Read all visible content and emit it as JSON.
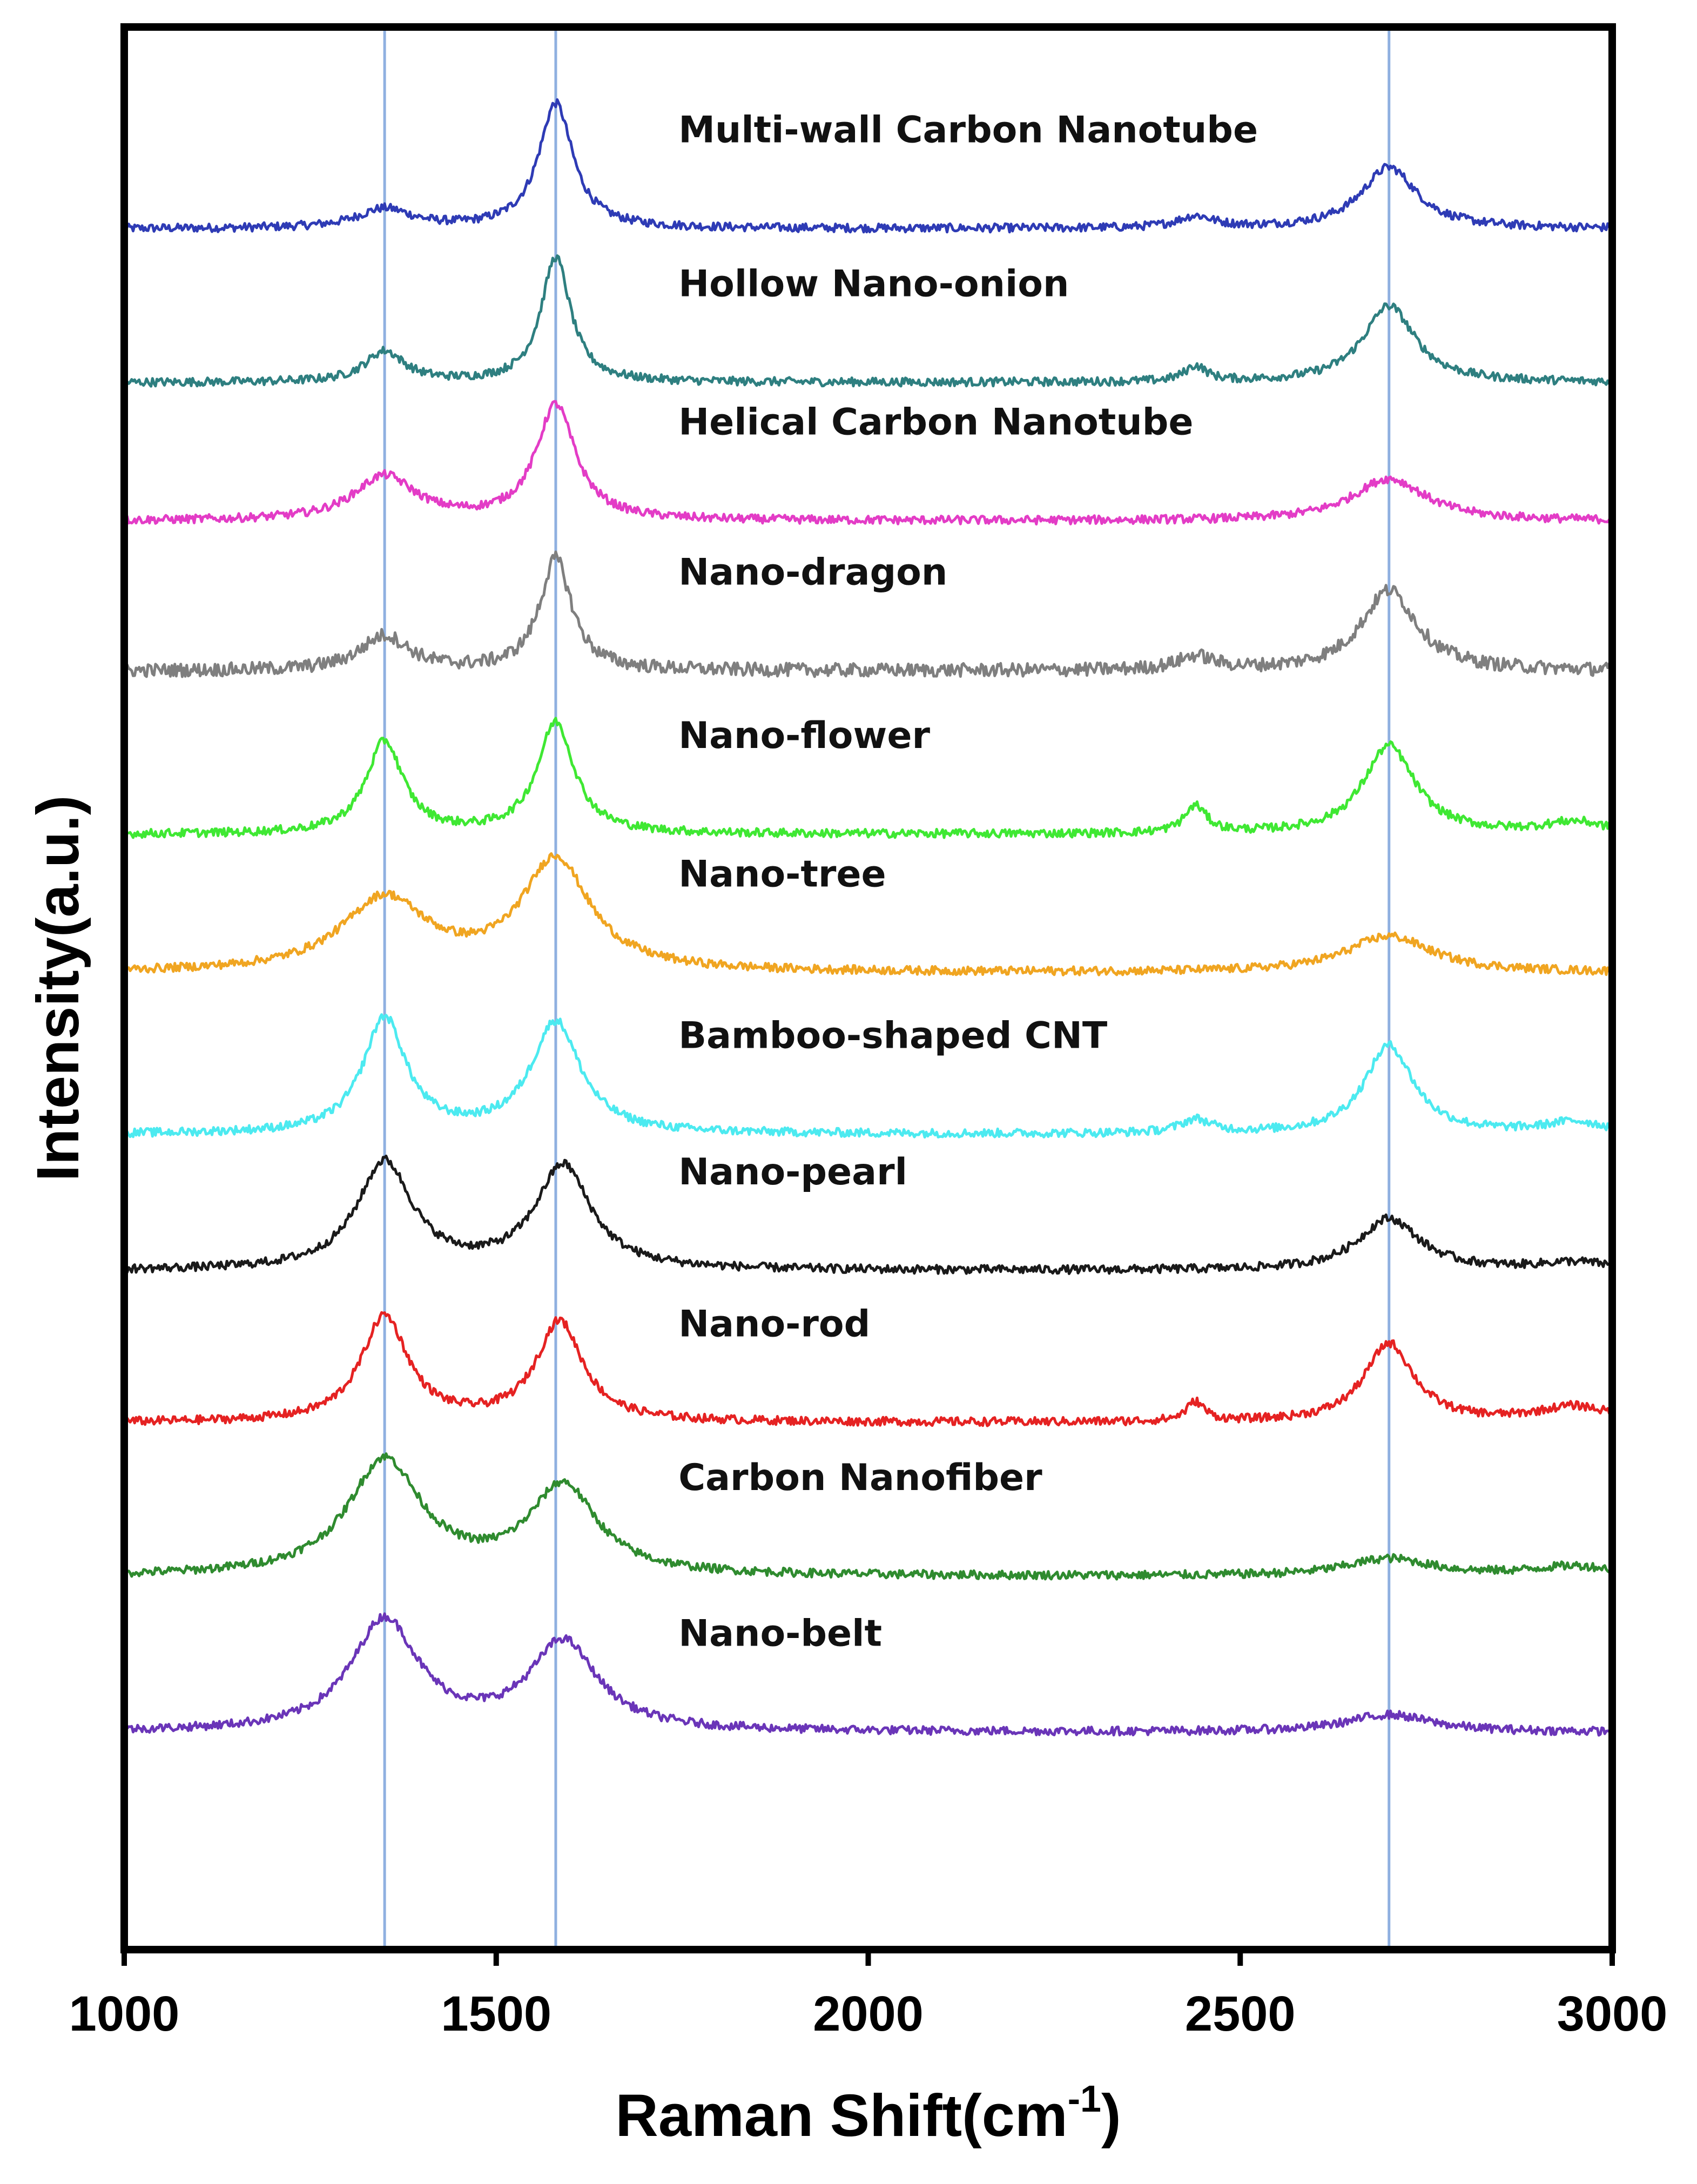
{
  "chart_data": {
    "type": "line",
    "xlabel": "Raman Shift(cm",
    "xlabel_superscript": "-1",
    "xlabel_suffix": ")",
    "ylabel": "Intensity(a.u.)",
    "xlim": [
      1000,
      3000
    ],
    "x_ticks": [
      "1000",
      "1500",
      "2000",
      "2500",
      "3000"
    ],
    "y_ticks": [],
    "grid": false,
    "reference_lines_x": [
      1350,
      1580,
      2700
    ],
    "series": [
      {
        "name": "Multi-wall Carbon Nanotube",
        "color": "#2e3bb5",
        "baseline": 0.895,
        "peaks": [
          {
            "center": 1350,
            "height": 0.01,
            "width": 45
          },
          {
            "center": 1580,
            "height": 0.065,
            "width": 28
          },
          {
            "center": 2440,
            "height": 0.006,
            "width": 30
          },
          {
            "center": 2700,
            "height": 0.032,
            "width": 45
          }
        ]
      },
      {
        "name": "Hollow Nano-onion",
        "color": "#2e7f80",
        "baseline": 0.815,
        "peaks": [
          {
            "center": 1350,
            "height": 0.016,
            "width": 32
          },
          {
            "center": 1580,
            "height": 0.065,
            "width": 24
          },
          {
            "center": 2440,
            "height": 0.008,
            "width": 18
          },
          {
            "center": 2700,
            "height": 0.04,
            "width": 42
          }
        ]
      },
      {
        "name": "Helical Carbon Nanotube",
        "color": "#e33cc6",
        "baseline": 0.743,
        "peaks": [
          {
            "center": 1350,
            "height": 0.023,
            "width": 50
          },
          {
            "center": 1580,
            "height": 0.06,
            "width": 32
          },
          {
            "center": 2700,
            "height": 0.022,
            "width": 60
          }
        ]
      },
      {
        "name": "Nano-dragon",
        "color": "#7f7f7f",
        "baseline": 0.665,
        "peaks": [
          {
            "center": 1350,
            "height": 0.018,
            "width": 40
          },
          {
            "center": 1580,
            "height": 0.058,
            "width": 26
          },
          {
            "center": 2440,
            "height": 0.007,
            "width": 30
          },
          {
            "center": 2700,
            "height": 0.042,
            "width": 45
          }
        ]
      },
      {
        "name": "Nano-flower",
        "color": "#3fe833",
        "baseline": 0.58,
        "peaks": [
          {
            "center": 1350,
            "height": 0.048,
            "width": 30
          },
          {
            "center": 1580,
            "height": 0.058,
            "width": 30
          },
          {
            "center": 2440,
            "height": 0.014,
            "width": 18
          },
          {
            "center": 2700,
            "height": 0.046,
            "width": 42
          },
          {
            "center": 2950,
            "height": 0.006,
            "width": 50
          }
        ]
      },
      {
        "name": "Nano-tree",
        "color": "#f0a521",
        "baseline": 0.508,
        "peaks": [
          {
            "center": 1350,
            "height": 0.038,
            "width": 70
          },
          {
            "center": 1580,
            "height": 0.058,
            "width": 55
          },
          {
            "center": 2700,
            "height": 0.019,
            "width": 70
          }
        ]
      },
      {
        "name": "Bamboo-shaped CNT",
        "color": "#4ceaf0",
        "baseline": 0.424,
        "peaks": [
          {
            "center": 1350,
            "height": 0.06,
            "width": 35
          },
          {
            "center": 1580,
            "height": 0.058,
            "width": 40
          },
          {
            "center": 2440,
            "height": 0.007,
            "width": 25
          },
          {
            "center": 2700,
            "height": 0.046,
            "width": 40
          },
          {
            "center": 2950,
            "height": 0.006,
            "width": 50
          }
        ]
      },
      {
        "name": "Nano-pearl",
        "color": "#1a1a1a",
        "baseline": 0.353,
        "peaks": [
          {
            "center": 1350,
            "height": 0.056,
            "width": 45
          },
          {
            "center": 1590,
            "height": 0.054,
            "width": 45
          },
          {
            "center": 2700,
            "height": 0.027,
            "width": 50
          },
          {
            "center": 2950,
            "height": 0.004,
            "width": 60
          }
        ]
      },
      {
        "name": "Nano-rod",
        "color": "#e52222",
        "baseline": 0.274,
        "peaks": [
          {
            "center": 1350,
            "height": 0.055,
            "width": 38
          },
          {
            "center": 1585,
            "height": 0.052,
            "width": 38
          },
          {
            "center": 2440,
            "height": 0.01,
            "width": 15
          },
          {
            "center": 2700,
            "height": 0.041,
            "width": 40
          },
          {
            "center": 2950,
            "height": 0.008,
            "width": 60
          }
        ]
      },
      {
        "name": "Carbon Nanofiber",
        "color": "#2f8b2f",
        "baseline": 0.194,
        "peaks": [
          {
            "center": 1350,
            "height": 0.06,
            "width": 60
          },
          {
            "center": 1590,
            "height": 0.046,
            "width": 55
          },
          {
            "center": 2700,
            "height": 0.009,
            "width": 70
          },
          {
            "center": 2950,
            "height": 0.005,
            "width": 70
          }
        ]
      },
      {
        "name": "Nano-belt",
        "color": "#6a35b8",
        "baseline": 0.113,
        "peaks": [
          {
            "center": 1350,
            "height": 0.058,
            "width": 55
          },
          {
            "center": 1590,
            "height": 0.046,
            "width": 55
          },
          {
            "center": 2700,
            "height": 0.009,
            "width": 70
          }
        ]
      }
    ]
  }
}
